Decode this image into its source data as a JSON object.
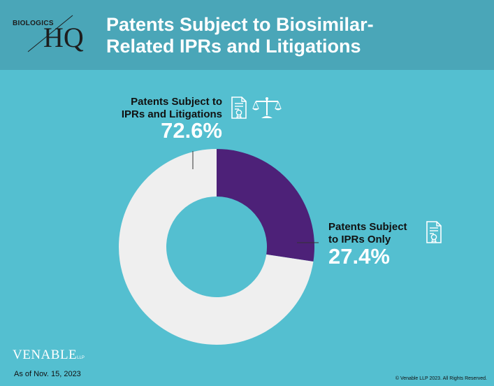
{
  "header": {
    "logo_small": "BIOLOGICS",
    "logo_big": "HQ",
    "title_line1": "Patents Subject to Biosimilar-",
    "title_line2": "Related IPRs and Litigations"
  },
  "chart_data": {
    "type": "pie",
    "variant": "donut",
    "title": "Patents Subject to Biosimilar-Related IPRs and Litigations",
    "slices": [
      {
        "label": "Patents Subject to IPRs Only",
        "value": 27.4,
        "display": "27.4%",
        "color": "#4d2178"
      },
      {
        "label": "Patents Subject to IPRs and Litigations",
        "value": 72.6,
        "display": "72.6%",
        "color": "#efefef"
      }
    ]
  },
  "labels": {
    "litigation_line1": "Patents Subject to",
    "litigation_line2": "IPRs and Litigations",
    "litigation_pct": "72.6%",
    "ipr_line1": "Patents Subject",
    "ipr_line2": "to IPRs Only",
    "ipr_pct": "27.4%"
  },
  "icons": {
    "document": "certificate-document-icon",
    "scales": "scales-of-justice-icon"
  },
  "footer": {
    "brand": "VENABLE",
    "brand_suffix": "LLP",
    "date": "As of Nov. 15, 2023",
    "copyright": "© Venable LLP 2023. All Rights Reserved."
  },
  "colors": {
    "background": "#54bfd0",
    "header": "#4aa6b8",
    "ipr_only": "#4d2178",
    "ipr_and_litigation": "#efefef"
  }
}
